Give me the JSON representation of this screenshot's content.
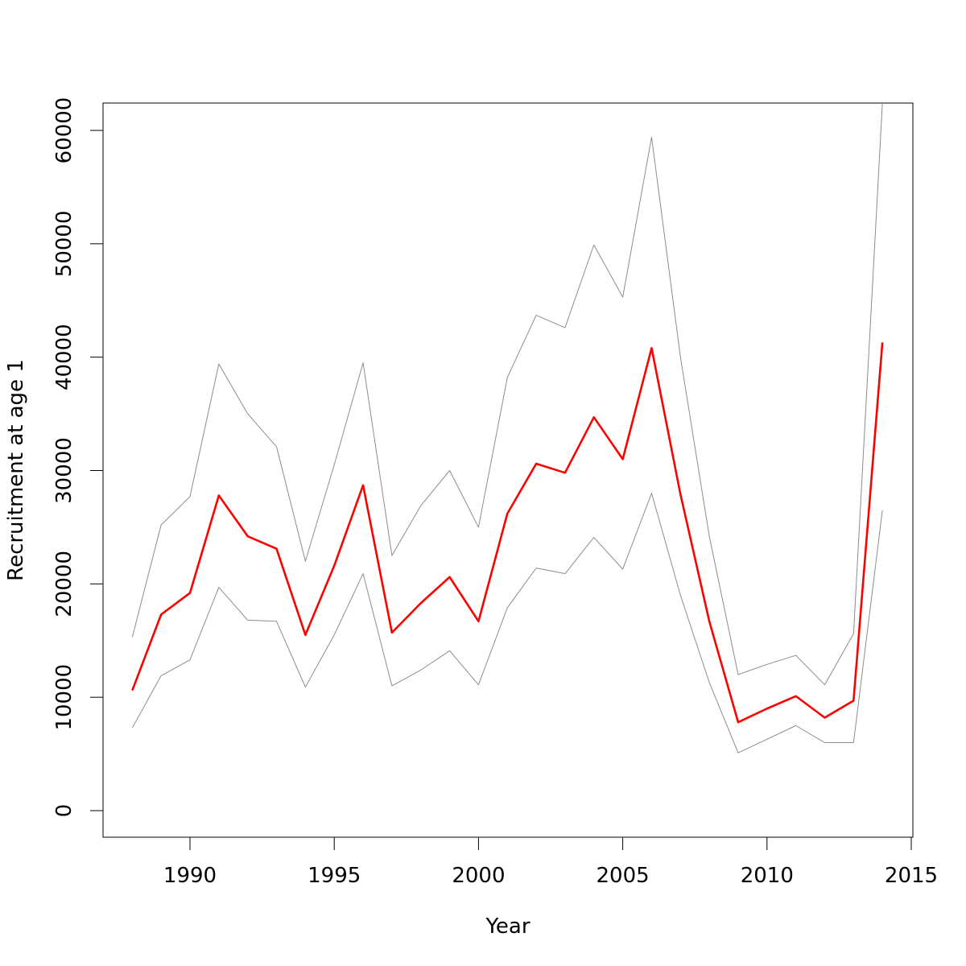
{
  "chart_data": {
    "type": "line",
    "title": "",
    "xlabel": "Year",
    "ylabel": "Recruitment at age 1",
    "xlim": [
      1988,
      2014
    ],
    "ylim": [
      0,
      62000
    ],
    "x_ticks": [
      1990,
      1995,
      2000,
      2005,
      2010,
      2015
    ],
    "y_ticks": [
      0,
      10000,
      20000,
      30000,
      40000,
      50000,
      60000
    ],
    "grid": false,
    "legend": "none",
    "x": [
      1988,
      1989,
      1990,
      1991,
      1992,
      1993,
      1994,
      1995,
      1996,
      1997,
      1998,
      1999,
      2000,
      2001,
      2002,
      2003,
      2004,
      2005,
      2006,
      2007,
      2008,
      2009,
      2010,
      2011,
      2012,
      2013,
      2014
    ],
    "series": [
      {
        "role": "upper",
        "color": "#8c8c8c",
        "values": [
          15300,
          25200,
          27700,
          39400,
          35000,
          32100,
          22000,
          30500,
          39500,
          22500,
          26900,
          30000,
          25000,
          38200,
          43700,
          42600,
          49900,
          45300,
          59400,
          40000,
          24200,
          12000,
          12900,
          13700,
          11100,
          15600,
          62500
        ]
      },
      {
        "role": "estimate",
        "color": "#ff0000",
        "values": [
          10600,
          17300,
          19200,
          27800,
          24200,
          23100,
          15500,
          21600,
          28700,
          15700,
          18300,
          20600,
          16700,
          26200,
          30600,
          29800,
          34700,
          31000,
          40800,
          27900,
          16700,
          7800,
          9000,
          10100,
          8200,
          9700,
          41300
        ]
      },
      {
        "role": "lower",
        "color": "#8c8c8c",
        "values": [
          7300,
          11900,
          13300,
          19700,
          16800,
          16700,
          10900,
          15500,
          20900,
          11000,
          12400,
          14100,
          11100,
          17900,
          21400,
          20900,
          24100,
          21300,
          28000,
          19000,
          11300,
          5100,
          6300,
          7500,
          6000,
          6000,
          26500
        ]
      }
    ]
  }
}
